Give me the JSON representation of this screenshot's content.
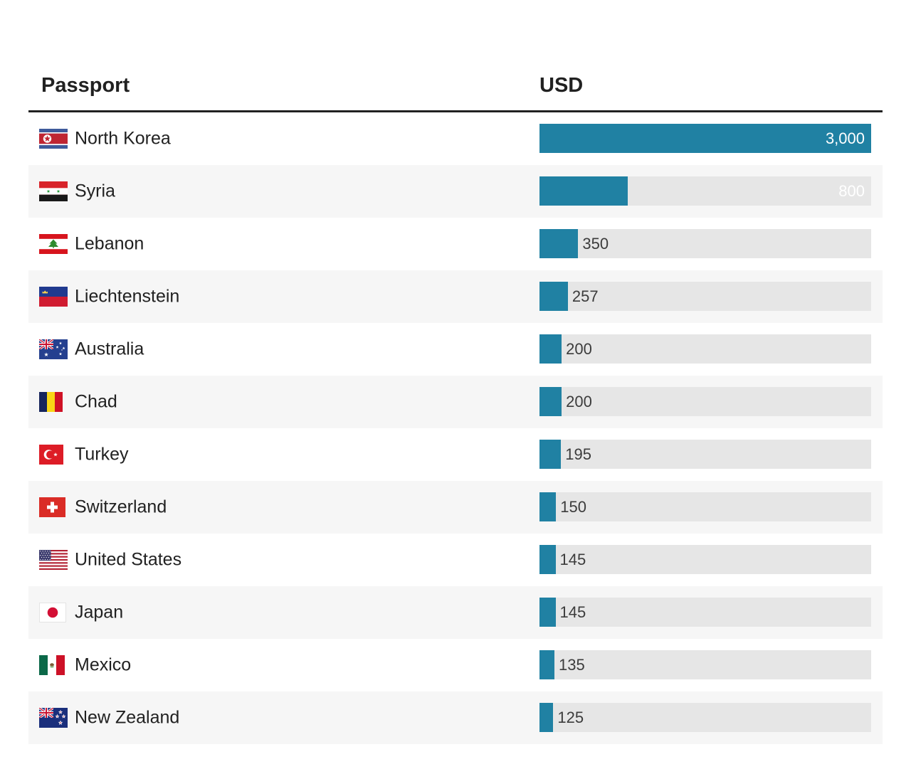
{
  "header": {
    "passport": "Passport",
    "usd": "USD"
  },
  "chart_data": {
    "type": "bar",
    "orientation": "horizontal",
    "title": "",
    "xlabel": "USD",
    "ylabel": "Passport",
    "xlim": [
      0,
      3000
    ],
    "grid": false,
    "legend": false,
    "categories": [
      "North Korea",
      "Syria",
      "Lebanon",
      "Liechtenstein",
      "Australia",
      "Chad",
      "Turkey",
      "Switzerland",
      "United States",
      "Japan",
      "Mexico",
      "New Zealand"
    ],
    "values": [
      3000,
      800,
      350,
      257,
      200,
      200,
      195,
      150,
      145,
      145,
      135,
      125
    ],
    "value_labels": [
      "3,000",
      "800",
      "350",
      "257",
      "200",
      "200",
      "195",
      "150",
      "145",
      "145",
      "135",
      "125"
    ]
  },
  "rows": [
    {
      "country": "North Korea",
      "flag": "north-korea",
      "value": 3000,
      "display": "3,000"
    },
    {
      "country": "Syria",
      "flag": "syria",
      "value": 800,
      "display": "800"
    },
    {
      "country": "Lebanon",
      "flag": "lebanon",
      "value": 350,
      "display": "350"
    },
    {
      "country": "Liechtenstein",
      "flag": "liechtenstein",
      "value": 257,
      "display": "257"
    },
    {
      "country": "Australia",
      "flag": "australia",
      "value": 200,
      "display": "200"
    },
    {
      "country": "Chad",
      "flag": "chad",
      "value": 200,
      "display": "200"
    },
    {
      "country": "Turkey",
      "flag": "turkey",
      "value": 195,
      "display": "195"
    },
    {
      "country": "Switzerland",
      "flag": "switzerland",
      "value": 150,
      "display": "150"
    },
    {
      "country": "United States",
      "flag": "united-states",
      "value": 145,
      "display": "145"
    },
    {
      "country": "Japan",
      "flag": "japan",
      "value": 145,
      "display": "145"
    },
    {
      "country": "Mexico",
      "flag": "mexico",
      "value": 135,
      "display": "135"
    },
    {
      "country": "New Zealand",
      "flag": "new-zealand",
      "value": 125,
      "display": "125"
    }
  ],
  "colors": {
    "bar": "#2081a3",
    "bar_track": "#e6e6e6",
    "zebra_row": "#f6f6f6",
    "header_rule": "#212121",
    "text": "#212121",
    "value_inside": "#ffffff",
    "value_outside": "#3c3c3c"
  }
}
